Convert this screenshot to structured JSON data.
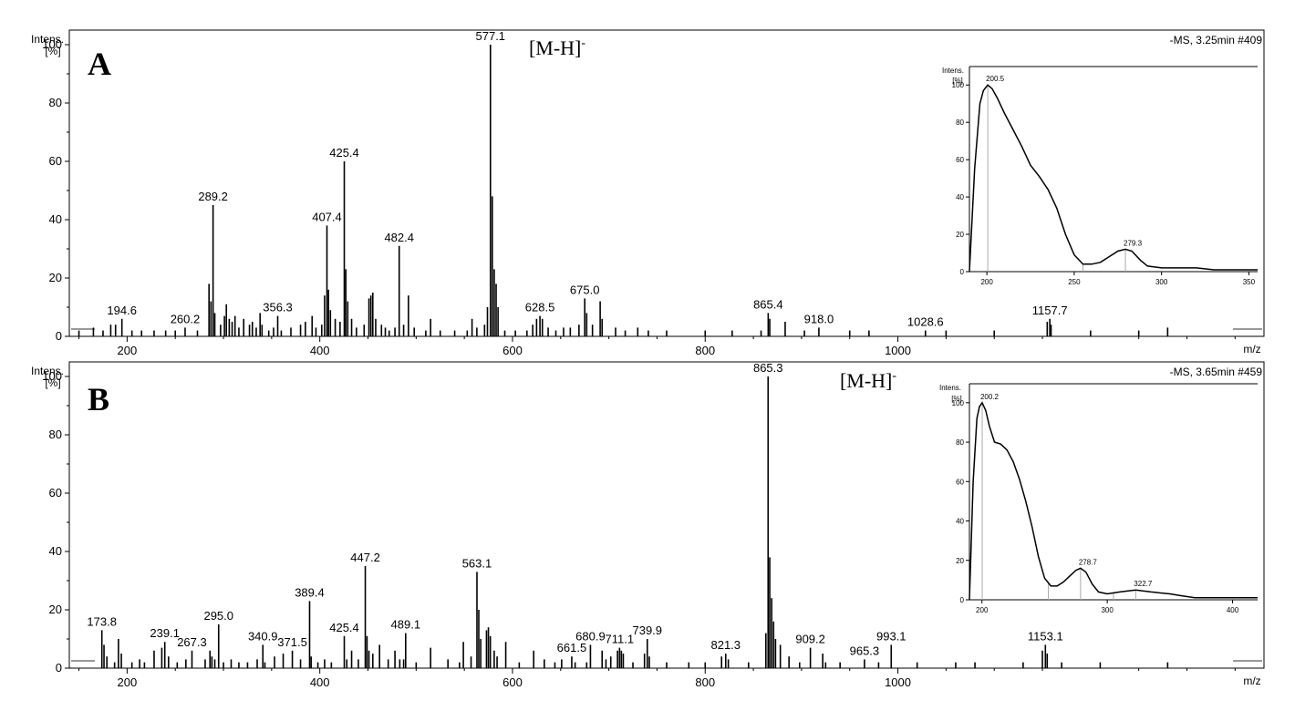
{
  "chart_data": [
    {
      "type": "bar",
      "panel_letter": "A",
      "run_label": "-MS, 3.25min #409",
      "ion_label": "[M-H]",
      "ion_label_sup": "-",
      "y_axis_label": "Intens.",
      "y_axis_unit": "[%]",
      "x_axis_label": "m/z",
      "xlim": [
        140,
        1380
      ],
      "ylim": [
        0,
        105
      ],
      "x_ticks": [
        "200",
        "400",
        "600",
        "800",
        "1000"
      ],
      "y_ticks": [
        "0",
        "20",
        "40",
        "60",
        "80",
        "100"
      ],
      "peaks": [
        {
          "x": 194.6,
          "y": 6,
          "label": "194.6"
        },
        {
          "x": 260.2,
          "y": 3,
          "label": "260.2"
        },
        {
          "x": 289.2,
          "y": 45,
          "label": "289.2"
        },
        {
          "x": 356.3,
          "y": 7,
          "label": "356.3"
        },
        {
          "x": 407.4,
          "y": 38,
          "label": "407.4"
        },
        {
          "x": 425.4,
          "y": 60,
          "label": "425.4"
        },
        {
          "x": 482.4,
          "y": 31,
          "label": "482.4"
        },
        {
          "x": 577.1,
          "y": 100,
          "label": "577.1"
        },
        {
          "x": 628.5,
          "y": 7,
          "label": "628.5"
        },
        {
          "x": 675.0,
          "y": 13,
          "label": "675.0"
        },
        {
          "x": 865.4,
          "y": 8,
          "label": "865.4"
        },
        {
          "x": 918.0,
          "y": 3,
          "label": "918.0"
        },
        {
          "x": 1028.6,
          "y": 2,
          "label": "1028.6"
        },
        {
          "x": 1157.7,
          "y": 6,
          "label": "1157.7"
        },
        {
          "x": 150,
          "y": 2
        },
        {
          "x": 165,
          "y": 3
        },
        {
          "x": 175,
          "y": 2
        },
        {
          "x": 183,
          "y": 4
        },
        {
          "x": 188,
          "y": 4
        },
        {
          "x": 205,
          "y": 2
        },
        {
          "x": 215,
          "y": 2
        },
        {
          "x": 228,
          "y": 2
        },
        {
          "x": 240,
          "y": 2
        },
        {
          "x": 250,
          "y": 2
        },
        {
          "x": 273,
          "y": 2
        },
        {
          "x": 285,
          "y": 18
        },
        {
          "x": 287,
          "y": 12
        },
        {
          "x": 291,
          "y": 8
        },
        {
          "x": 297,
          "y": 4
        },
        {
          "x": 301,
          "y": 7
        },
        {
          "x": 303,
          "y": 11
        },
        {
          "x": 306,
          "y": 6
        },
        {
          "x": 309,
          "y": 5
        },
        {
          "x": 312,
          "y": 7
        },
        {
          "x": 316,
          "y": 3
        },
        {
          "x": 321,
          "y": 6
        },
        {
          "x": 327,
          "y": 4
        },
        {
          "x": 330,
          "y": 5
        },
        {
          "x": 334,
          "y": 3
        },
        {
          "x": 338,
          "y": 8
        },
        {
          "x": 340,
          "y": 4
        },
        {
          "x": 347,
          "y": 2
        },
        {
          "x": 352,
          "y": 3
        },
        {
          "x": 360,
          "y": 2
        },
        {
          "x": 370,
          "y": 3
        },
        {
          "x": 380,
          "y": 4
        },
        {
          "x": 385,
          "y": 5
        },
        {
          "x": 392,
          "y": 7
        },
        {
          "x": 396,
          "y": 3
        },
        {
          "x": 402,
          "y": 4
        },
        {
          "x": 405,
          "y": 14
        },
        {
          "x": 409,
          "y": 16
        },
        {
          "x": 411,
          "y": 9
        },
        {
          "x": 416,
          "y": 6
        },
        {
          "x": 421,
          "y": 5
        },
        {
          "x": 427,
          "y": 23
        },
        {
          "x": 429,
          "y": 12
        },
        {
          "x": 433,
          "y": 6
        },
        {
          "x": 438,
          "y": 3
        },
        {
          "x": 446,
          "y": 4
        },
        {
          "x": 451,
          "y": 13
        },
        {
          "x": 453,
          "y": 14
        },
        {
          "x": 455,
          "y": 15
        },
        {
          "x": 458,
          "y": 6
        },
        {
          "x": 464,
          "y": 4
        },
        {
          "x": 468,
          "y": 3
        },
        {
          "x": 472,
          "y": 2
        },
        {
          "x": 478,
          "y": 3
        },
        {
          "x": 487,
          "y": 4
        },
        {
          "x": 492,
          "y": 14
        },
        {
          "x": 498,
          "y": 3
        },
        {
          "x": 510,
          "y": 2
        },
        {
          "x": 515,
          "y": 6
        },
        {
          "x": 525,
          "y": 2
        },
        {
          "x": 540,
          "y": 2
        },
        {
          "x": 553,
          "y": 2
        },
        {
          "x": 558,
          "y": 6
        },
        {
          "x": 563,
          "y": 3
        },
        {
          "x": 571,
          "y": 4
        },
        {
          "x": 574,
          "y": 10
        },
        {
          "x": 579,
          "y": 48
        },
        {
          "x": 581,
          "y": 23
        },
        {
          "x": 583,
          "y": 18
        },
        {
          "x": 585,
          "y": 10
        },
        {
          "x": 592,
          "y": 2
        },
        {
          "x": 603,
          "y": 2
        },
        {
          "x": 615,
          "y": 2
        },
        {
          "x": 621,
          "y": 4
        },
        {
          "x": 625,
          "y": 6
        },
        {
          "x": 631,
          "y": 6
        },
        {
          "x": 637,
          "y": 3
        },
        {
          "x": 645,
          "y": 2
        },
        {
          "x": 653,
          "y": 3
        },
        {
          "x": 660,
          "y": 3
        },
        {
          "x": 669,
          "y": 4
        },
        {
          "x": 677,
          "y": 8
        },
        {
          "x": 683,
          "y": 4
        },
        {
          "x": 691,
          "y": 12
        },
        {
          "x": 693,
          "y": 6
        },
        {
          "x": 707,
          "y": 3
        },
        {
          "x": 717,
          "y": 2
        },
        {
          "x": 730,
          "y": 3
        },
        {
          "x": 741,
          "y": 2
        },
        {
          "x": 760,
          "y": 2
        },
        {
          "x": 800,
          "y": 2
        },
        {
          "x": 828,
          "y": 2
        },
        {
          "x": 858,
          "y": 2
        },
        {
          "x": 867,
          "y": 6
        },
        {
          "x": 883,
          "y": 5
        },
        {
          "x": 903,
          "y": 2
        },
        {
          "x": 950,
          "y": 2
        },
        {
          "x": 970,
          "y": 2
        },
        {
          "x": 1050,
          "y": 2
        },
        {
          "x": 1100,
          "y": 2
        },
        {
          "x": 1155,
          "y": 5
        },
        {
          "x": 1159,
          "y": 4
        },
        {
          "x": 1200,
          "y": 2
        },
        {
          "x": 1250,
          "y": 2
        },
        {
          "x": 1280,
          "y": 3
        }
      ],
      "inset": {
        "type": "line",
        "y_axis_label": "Intens.",
        "y_axis_unit": "[%]",
        "xlim": [
          190,
          355
        ],
        "ylim": [
          0,
          105
        ],
        "x_ticks": [
          "200",
          "250",
          "300",
          "350"
        ],
        "y_ticks": [
          "0",
          "20",
          "40",
          "60",
          "80",
          "100"
        ],
        "x": [
          190,
          193,
          196,
          198,
          200.5,
          203,
          206,
          210,
          215,
          220,
          225,
          230,
          235,
          240,
          245,
          250,
          255,
          260,
          265,
          270,
          275,
          279.3,
          283,
          288,
          292,
          300,
          310,
          320,
          330,
          340,
          355
        ],
        "y": [
          0,
          55,
          90,
          97,
          100,
          98,
          93,
          85,
          76,
          67,
          57,
          51,
          44,
          34,
          20,
          9,
          4,
          4,
          5,
          8,
          11,
          12,
          11,
          6,
          3,
          2,
          2,
          2,
          1,
          1,
          1
        ],
        "markers": [
          {
            "x": 200.5,
            "label": "200.5"
          },
          {
            "x": 255,
            "label": ""
          },
          {
            "x": 279.3,
            "label": "279.3"
          }
        ]
      }
    },
    {
      "type": "bar",
      "panel_letter": "B",
      "run_label": "-MS, 3.65min #459",
      "ion_label": "[M-H]",
      "ion_label_sup": "-",
      "y_axis_label": "Intens.",
      "y_axis_unit": "[%]",
      "x_axis_label": "m/z",
      "xlim": [
        140,
        1380
      ],
      "ylim": [
        0,
        105
      ],
      "x_ticks": [
        "200",
        "400",
        "600",
        "800",
        "1000"
      ],
      "y_ticks": [
        "0",
        "20",
        "40",
        "60",
        "80",
        "100"
      ],
      "peaks": [
        {
          "x": 173.8,
          "y": 13,
          "label": "173.8"
        },
        {
          "x": 239.1,
          "y": 9,
          "label": "239.1"
        },
        {
          "x": 267.3,
          "y": 6,
          "label": "267.3"
        },
        {
          "x": 295.0,
          "y": 15,
          "label": "295.0"
        },
        {
          "x": 340.9,
          "y": 8,
          "label": "340.9"
        },
        {
          "x": 371.5,
          "y": 6,
          "label": "371.5"
        },
        {
          "x": 389.4,
          "y": 23,
          "label": "389.4"
        },
        {
          "x": 425.4,
          "y": 11,
          "label": "425.4"
        },
        {
          "x": 447.2,
          "y": 35,
          "label": "447.2"
        },
        {
          "x": 489.1,
          "y": 12,
          "label": "489.1"
        },
        {
          "x": 563.1,
          "y": 33,
          "label": "563.1"
        },
        {
          "x": 661.5,
          "y": 4,
          "label": "661.5"
        },
        {
          "x": 680.9,
          "y": 8,
          "label": "680.9"
        },
        {
          "x": 711.1,
          "y": 7,
          "label": "711.1"
        },
        {
          "x": 739.9,
          "y": 10,
          "label": "739.9"
        },
        {
          "x": 821.3,
          "y": 5,
          "label": "821.3"
        },
        {
          "x": 865.3,
          "y": 100,
          "label": "865.3"
        },
        {
          "x": 909.2,
          "y": 7,
          "label": "909.2"
        },
        {
          "x": 965.3,
          "y": 3,
          "label": "965.3"
        },
        {
          "x": 993.1,
          "y": 8,
          "label": "993.1"
        },
        {
          "x": 1153.1,
          "y": 8,
          "label": "1153.1"
        },
        {
          "x": 176,
          "y": 8
        },
        {
          "x": 179,
          "y": 4
        },
        {
          "x": 187,
          "y": 2
        },
        {
          "x": 191,
          "y": 10
        },
        {
          "x": 194,
          "y": 5
        },
        {
          "x": 205,
          "y": 2
        },
        {
          "x": 213,
          "y": 3
        },
        {
          "x": 218,
          "y": 2
        },
        {
          "x": 228,
          "y": 6
        },
        {
          "x": 236,
          "y": 7
        },
        {
          "x": 243,
          "y": 4
        },
        {
          "x": 252,
          "y": 2
        },
        {
          "x": 261,
          "y": 3
        },
        {
          "x": 281,
          "y": 3
        },
        {
          "x": 286,
          "y": 6
        },
        {
          "x": 288,
          "y": 4
        },
        {
          "x": 291,
          "y": 3
        },
        {
          "x": 300,
          "y": 2
        },
        {
          "x": 308,
          "y": 3
        },
        {
          "x": 316,
          "y": 2
        },
        {
          "x": 325,
          "y": 2
        },
        {
          "x": 335,
          "y": 3
        },
        {
          "x": 343,
          "y": 2
        },
        {
          "x": 353,
          "y": 4
        },
        {
          "x": 362,
          "y": 5
        },
        {
          "x": 380,
          "y": 3
        },
        {
          "x": 391,
          "y": 4
        },
        {
          "x": 398,
          "y": 2
        },
        {
          "x": 405,
          "y": 3
        },
        {
          "x": 412,
          "y": 2
        },
        {
          "x": 428,
          "y": 3
        },
        {
          "x": 433,
          "y": 6
        },
        {
          "x": 440,
          "y": 3
        },
        {
          "x": 449,
          "y": 11
        },
        {
          "x": 451,
          "y": 6
        },
        {
          "x": 455,
          "y": 5
        },
        {
          "x": 462,
          "y": 8
        },
        {
          "x": 471,
          "y": 3
        },
        {
          "x": 478,
          "y": 6
        },
        {
          "x": 483,
          "y": 3
        },
        {
          "x": 487,
          "y": 3
        },
        {
          "x": 500,
          "y": 2
        },
        {
          "x": 515,
          "y": 7
        },
        {
          "x": 533,
          "y": 3
        },
        {
          "x": 545,
          "y": 2
        },
        {
          "x": 549,
          "y": 9
        },
        {
          "x": 557,
          "y": 4
        },
        {
          "x": 565,
          "y": 20
        },
        {
          "x": 567,
          "y": 10
        },
        {
          "x": 573,
          "y": 13
        },
        {
          "x": 575,
          "y": 14
        },
        {
          "x": 577,
          "y": 11
        },
        {
          "x": 581,
          "y": 6
        },
        {
          "x": 584,
          "y": 4
        },
        {
          "x": 593,
          "y": 9
        },
        {
          "x": 607,
          "y": 2
        },
        {
          "x": 622,
          "y": 6
        },
        {
          "x": 633,
          "y": 3
        },
        {
          "x": 644,
          "y": 2
        },
        {
          "x": 651,
          "y": 3
        },
        {
          "x": 665,
          "y": 2
        },
        {
          "x": 677,
          "y": 2
        },
        {
          "x": 693,
          "y": 6
        },
        {
          "x": 697,
          "y": 3
        },
        {
          "x": 702,
          "y": 4
        },
        {
          "x": 709,
          "y": 6
        },
        {
          "x": 713,
          "y": 6
        },
        {
          "x": 715,
          "y": 5
        },
        {
          "x": 725,
          "y": 2
        },
        {
          "x": 737,
          "y": 5
        },
        {
          "x": 742,
          "y": 4
        },
        {
          "x": 760,
          "y": 2
        },
        {
          "x": 783,
          "y": 2
        },
        {
          "x": 800,
          "y": 2
        },
        {
          "x": 817,
          "y": 4
        },
        {
          "x": 824,
          "y": 3
        },
        {
          "x": 845,
          "y": 2
        },
        {
          "x": 863,
          "y": 12
        },
        {
          "x": 867,
          "y": 38
        },
        {
          "x": 869,
          "y": 24
        },
        {
          "x": 871,
          "y": 16
        },
        {
          "x": 873,
          "y": 10
        },
        {
          "x": 878,
          "y": 8
        },
        {
          "x": 887,
          "y": 4
        },
        {
          "x": 898,
          "y": 2
        },
        {
          "x": 922,
          "y": 5
        },
        {
          "x": 925,
          "y": 2
        },
        {
          "x": 940,
          "y": 2
        },
        {
          "x": 980,
          "y": 2
        },
        {
          "x": 1020,
          "y": 2
        },
        {
          "x": 1060,
          "y": 2
        },
        {
          "x": 1080,
          "y": 2
        },
        {
          "x": 1130,
          "y": 2
        },
        {
          "x": 1150,
          "y": 6
        },
        {
          "x": 1155,
          "y": 5
        },
        {
          "x": 1170,
          "y": 2
        },
        {
          "x": 1210,
          "y": 2
        },
        {
          "x": 1280,
          "y": 2
        }
      ],
      "inset": {
        "type": "line",
        "y_axis_label": "Intens.",
        "y_axis_unit": "[%]",
        "xlim": [
          190,
          420
        ],
        "ylim": [
          0,
          105
        ],
        "x_ticks": [
          "200",
          "300",
          "400"
        ],
        "y_ticks": [
          "0",
          "20",
          "40",
          "60",
          "80",
          "100"
        ],
        "x": [
          190,
          193,
          196,
          198,
          200.2,
          203,
          206,
          210,
          215,
          220,
          225,
          230,
          235,
          240,
          245,
          250,
          255,
          260,
          265,
          270,
          275,
          278.7,
          283,
          288,
          293,
          300,
          310,
          322.7,
          335,
          350,
          360,
          370,
          380,
          395,
          420
        ],
        "y": [
          0,
          60,
          92,
          98,
          100,
          96,
          88,
          80,
          79,
          76,
          70,
          61,
          50,
          37,
          22,
          11,
          7,
          7,
          9,
          12,
          15,
          16,
          14,
          8,
          4,
          3,
          4,
          5,
          4,
          3,
          2,
          1,
          1,
          1,
          1
        ],
        "markers": [
          {
            "x": 200.2,
            "label": "200.2"
          },
          {
            "x": 253,
            "label": ""
          },
          {
            "x": 278.7,
            "label": "278.7"
          },
          {
            "x": 305,
            "label": ""
          },
          {
            "x": 322.7,
            "label": "322.7"
          }
        ]
      }
    }
  ]
}
